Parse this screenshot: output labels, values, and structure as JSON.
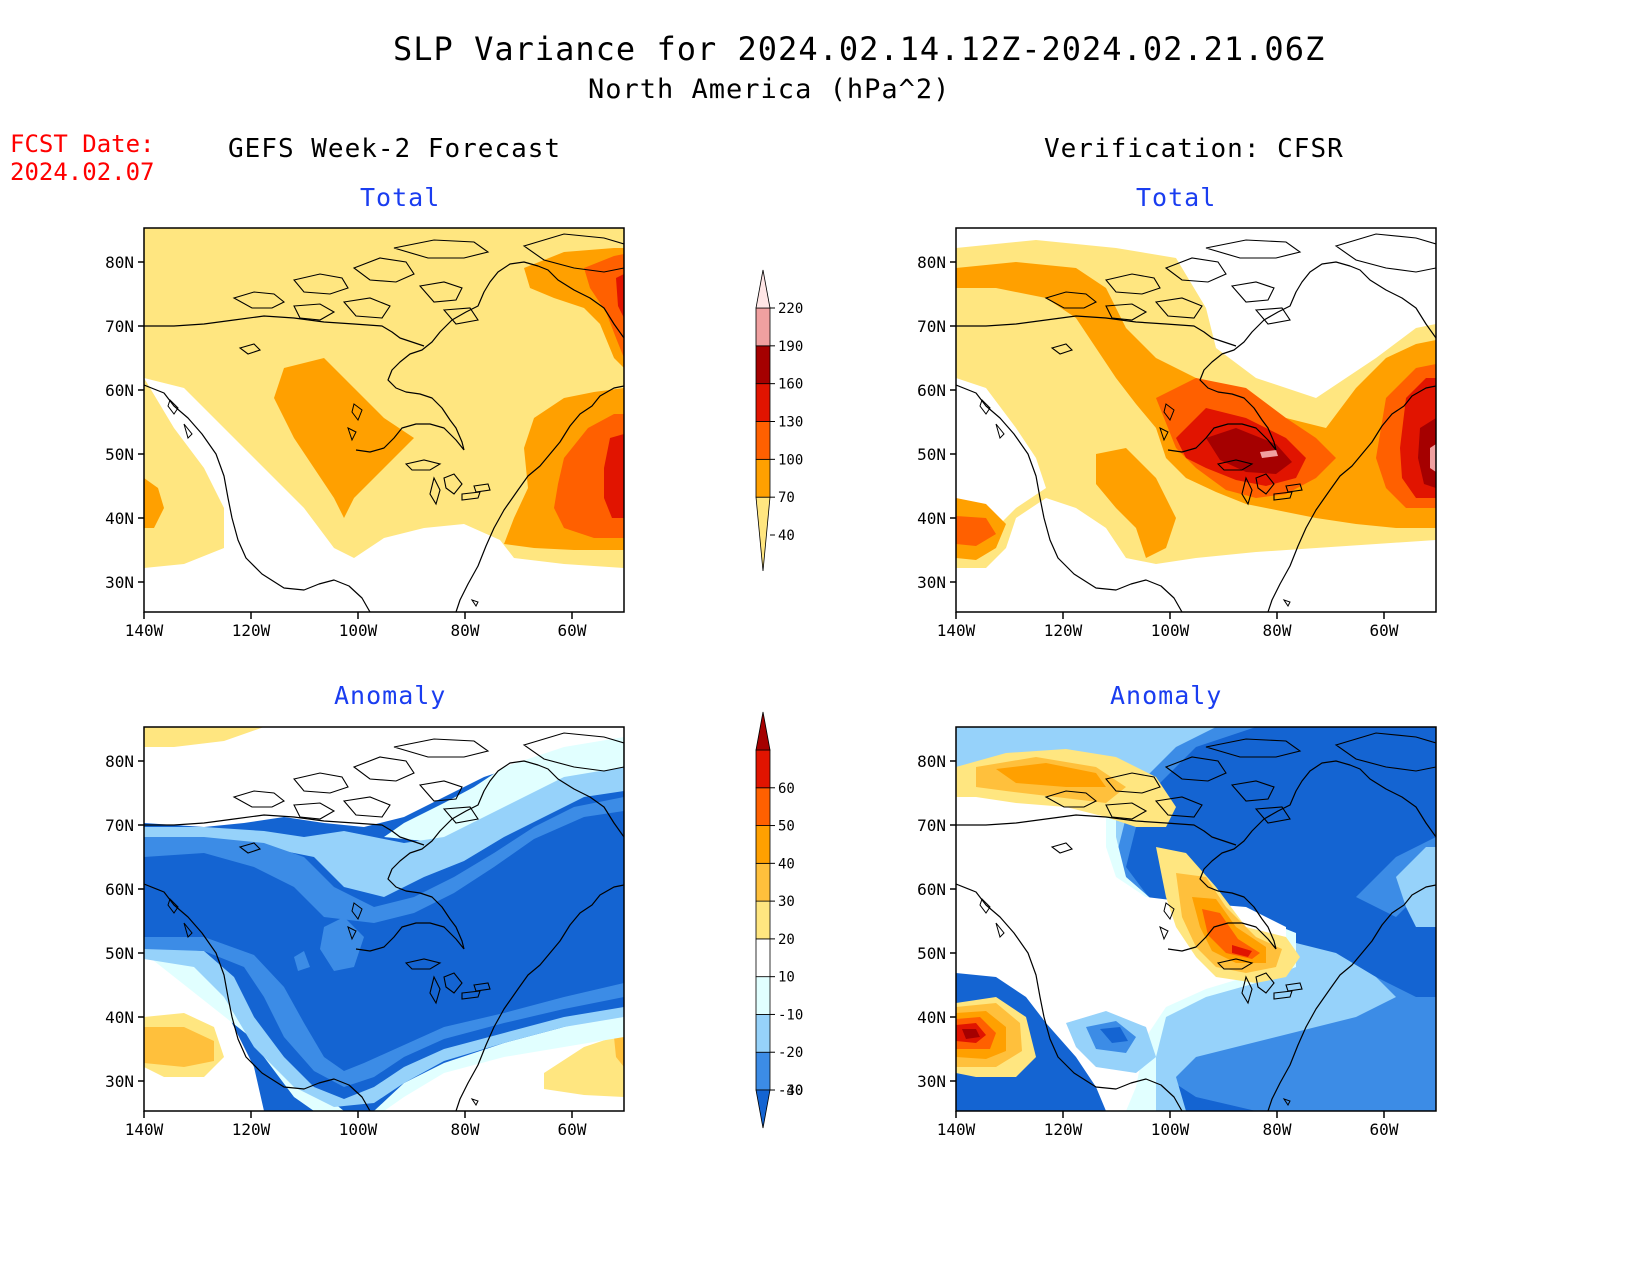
{
  "header": {
    "title": "SLP Variance for 2024.02.14.12Z-2024.02.21.06Z",
    "subtitle": "North America (hPa^2)",
    "fcst_label": "FCST Date:",
    "fcst_date": "2024.02.07"
  },
  "columns": {
    "left": "GEFS Week-2 Forecast",
    "right": "Verification: CFSR"
  },
  "panels": {
    "total_label": "Total",
    "anomaly_label": "Anomaly"
  },
  "axes": {
    "lat_ticks": [
      "80N",
      "70N",
      "60N",
      "50N",
      "40N",
      "30N"
    ],
    "lon_ticks": [
      "140W",
      "120W",
      "100W",
      "80W",
      "60W"
    ]
  },
  "legend_total": {
    "labels": [
      "40",
      "70",
      "100",
      "130",
      "160",
      "190",
      "220"
    ],
    "colors": [
      "#ffe680",
      "#ffa000",
      "#ff6000",
      "#e11400",
      "#a50000",
      "#f0a0a0",
      "#ffe6e6"
    ]
  },
  "legend_anomaly": {
    "labels": [
      "-40",
      "-30",
      "-20",
      "-10",
      "10",
      "20",
      "30",
      "40",
      "50",
      "60"
    ],
    "colors": [
      "#1464d2",
      "#3c8ce6",
      "#96d2fa",
      "#e1ffff",
      "#ffffff",
      "#ffe680",
      "#ffc03c",
      "#ffa000",
      "#ff6000",
      "#e11400",
      "#a50000"
    ]
  },
  "map_colors": {
    "t40": "#ffe680",
    "t70": "#ffa000",
    "t100": "#ff6000",
    "t130": "#e11400",
    "t160": "#a50000",
    "t190": "#f0a0a0",
    "a_m40": "#1464d2",
    "a_m30": "#3c8ce6",
    "a_m20": "#96d2fa",
    "a_m10": "#e1ffff",
    "a_p10": "#ffe680",
    "a_p20": "#ffc03c",
    "a_p30": "#ffa000",
    "a_p40": "#ff6000",
    "a_p50": "#e11400",
    "a_p60": "#a50000"
  }
}
